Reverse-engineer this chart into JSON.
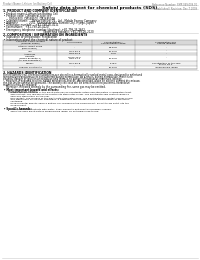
{
  "bg_color": "#ffffff",
  "header_left": "Product Name: Lithium Ion Battery Cell",
  "header_right": "Reference Number: SMP-049-009-01\nEstablished / Revision: Dec.7.2009",
  "title": "Safety data sheet for chemical products (SDS)",
  "s1_title": "1. PRODUCT AND COMPANY IDENTIFICATION",
  "s1_lines": [
    " • Product name: Lithium Ion Battery Cell",
    " • Product code: Cylindrical-type cell",
    "       DR166500, DR168500, DR168500A",
    " • Company name:     Benzo Electric Co., Ltd., Mobile Energy Company",
    " • Address:             2051  Kaminakanishi, Sumoto-City, Hyogo, Japan",
    " • Telephone number:    +81-799-26-4111",
    " • Fax number:   +81-799-26-4120",
    " • Emergency telephone number (daytime): +81-799-26-2662",
    "                                              (Night and holiday): +81-799-26-2120"
  ],
  "s2_title": "2. COMPOSITION / INFORMATION ON INGREDIENTS",
  "s2_line1": " • Substance or preparation: Preparation",
  "s2_line2": " • Information about the chemical nature of product:",
  "tbl_hdr": [
    "Chemical-name content\n(Several name)",
    "CAS number",
    "Concentration /\nConcentration range",
    "Classification and\nhazard labeling"
  ],
  "tbl_rows": [
    [
      "Lithium cobalt oxide\n(LiMnCoNiO₂)",
      "-",
      "30-60%",
      "-"
    ],
    [
      "Iron",
      "7439-89-6",
      "15-25%",
      "-"
    ],
    [
      "Aluminum",
      "7429-90-5",
      "2-5%",
      "-"
    ],
    [
      "Graphite\n(Mixed graphite-1)\n(All film graphite-1)",
      "77769-42-5\n7782-44-2",
      "10-25%",
      "-"
    ],
    [
      "Copper",
      "7440-50-8",
      "5-15%",
      "Sensitization of the skin\ngroup No.2"
    ],
    [
      "Organic electrolyte",
      "-",
      "10-20%",
      "Inflammable liquid"
    ]
  ],
  "s3_title": "3. HAZARDS IDENTIFICATION",
  "s3_para": [
    "For the battery cell, chemical substances are stored in a hermetically sealed metal case, designed to withstand",
    "temperatures and pressures encountered during normal use. As a result, during normal use, there is no",
    "physical danger of ignition or explosion and there is no danger of hazardous materials leakage.",
    "    However, if exposed to a fire, added mechanical shocks, decomposed, when an electric current dry misuse,",
    "the gas inside cannot be operated. The battery cell case will be breached of fire-patterms, hazardous",
    "materials may be released.",
    "    Moreover, if heated strongly by the surrounding fire, some gas may be emitted."
  ],
  "s3_b1": " • Most important hazard and effects:",
  "s3_human": "      Human health effects:",
  "s3_human_lines": [
    "          Inhalation: The release of the electrolyte has an anesthetic action and stimulates in respiratory tract.",
    "          Skin contact: The release of the electrolyte stimulates a skin. The electrolyte skin contact causes a",
    "          sore and stimulation on the skin.",
    "          Eye contact: The release of the electrolyte stimulates eyes. The electrolyte eye contact causes a sore",
    "          and stimulation on the eye. Especially, a substance that causes a strong inflammation of the eye is",
    "          contained.",
    "          Environmental effects: Since a battery cell remains in the environment, do not throw out it into the",
    "          environment."
  ],
  "s3_b2": " • Specific hazards:",
  "s3_spec": [
    "          If the electrolyte contacts with water, it will generate detrimental hydrogen fluoride.",
    "          Since the used electrolyte is inflammable liquid, do not bring close to fire."
  ]
}
